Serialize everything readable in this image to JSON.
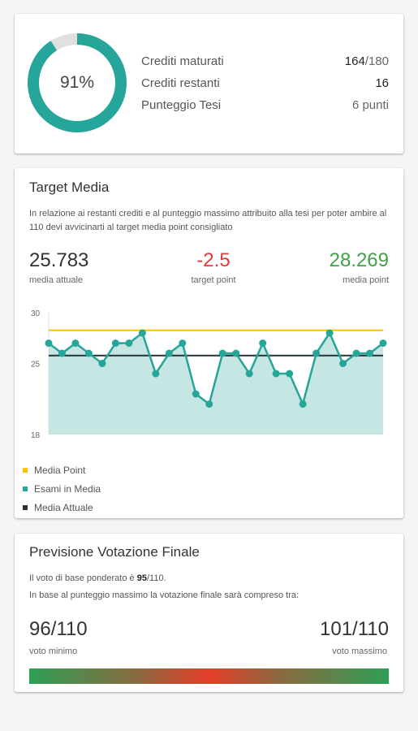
{
  "progress": {
    "percent_label": "91%",
    "percent": 0.91,
    "ring_color": "#26a69a",
    "ring_bg_color": "#e0e0e0",
    "rows": [
      {
        "label": "Crediti maturati",
        "value": "164",
        "suffix": "/180"
      },
      {
        "label": "Crediti restanti",
        "value": "16",
        "suffix": ""
      },
      {
        "label": "Punteggio Tesi",
        "value": "",
        "suffix": "6 punti"
      }
    ]
  },
  "target": {
    "title": "Target Media",
    "description": "In relazione ai restanti crediti e al punteggio massimo attribuito alla tesi per poter ambire al 110 devi avvicinarti al target media point consigliato",
    "metrics": {
      "current": {
        "value": "25.783",
        "caption": "media attuale",
        "color": "#333333"
      },
      "target": {
        "value": "-2.5",
        "caption": "target point",
        "color": "#e53935"
      },
      "point": {
        "value": "28.269",
        "caption": "media point",
        "color": "#43a047"
      }
    }
  },
  "chart_data": {
    "type": "line",
    "ylim": [
      18,
      30
    ],
    "ticks": [
      30,
      25,
      18
    ],
    "tick_labels": [
      "30",
      "25",
      "18"
    ],
    "series": [
      {
        "name": "Esami in Media",
        "color": "#26a69a",
        "fill": "#c5e6e3",
        "values": [
          27,
          26,
          27,
          26,
          25,
          27,
          27,
          28,
          24,
          26,
          27,
          22,
          21,
          26,
          26,
          24,
          27,
          24,
          24,
          21,
          26,
          28,
          25,
          26,
          26,
          27
        ]
      },
      {
        "name": "Media Point",
        "color": "#ffc107",
        "value": 28.269
      },
      {
        "name": "Media Attuale",
        "color": "#263238",
        "value": 25.783
      }
    ],
    "legend": [
      "Media Point",
      "Esami in Media",
      "Media Attuale"
    ],
    "legend_colors": [
      "#ffc107",
      "#26a69a",
      "#263238"
    ],
    "legend_position": "bottom-left"
  },
  "forecast": {
    "title": "Previsione Votazione Finale",
    "line1_prefix": "Il voto di base ponderato è ",
    "line1_bold": "95",
    "line1_suffix": "/110.",
    "line2": "In base al punteggio massimo la votazione finale sarà compreso tra:",
    "min_value": "96/110",
    "min_caption": "voto minimo",
    "max_value": "101/110",
    "max_caption": "voto massimo"
  }
}
